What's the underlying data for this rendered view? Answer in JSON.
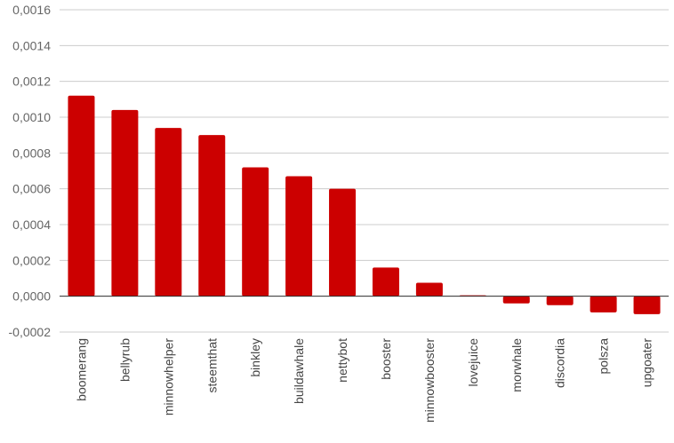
{
  "chart_data": {
    "type": "bar",
    "title": "",
    "xlabel": "",
    "ylabel": "",
    "categories": [
      "boomerang",
      "bellyrub",
      "minnowhelper",
      "steemthat",
      "binkley",
      "buildawhale",
      "nettybot",
      "booster",
      "minnowbooster",
      "lovejuice",
      "morwhale",
      "discordia",
      "polsza",
      "upgoater"
    ],
    "values": [
      0.00112,
      0.00104,
      0.00094,
      0.0009,
      0.00072,
      0.00067,
      0.0006,
      0.00016,
      7.5e-05,
      5e-06,
      -4e-05,
      -5e-05,
      -9e-05,
      -0.0001
    ],
    "ylim": [
      -0.0002,
      0.0016
    ],
    "yticks": [
      "0,0016",
      "0,0014",
      "0,0012",
      "0,0010",
      "0,0008",
      "0,0006",
      "0,0004",
      "0,0002",
      "0,0000",
      "-0,0002"
    ],
    "grid": true,
    "legend": "none",
    "bar_color": "#cc0000"
  }
}
